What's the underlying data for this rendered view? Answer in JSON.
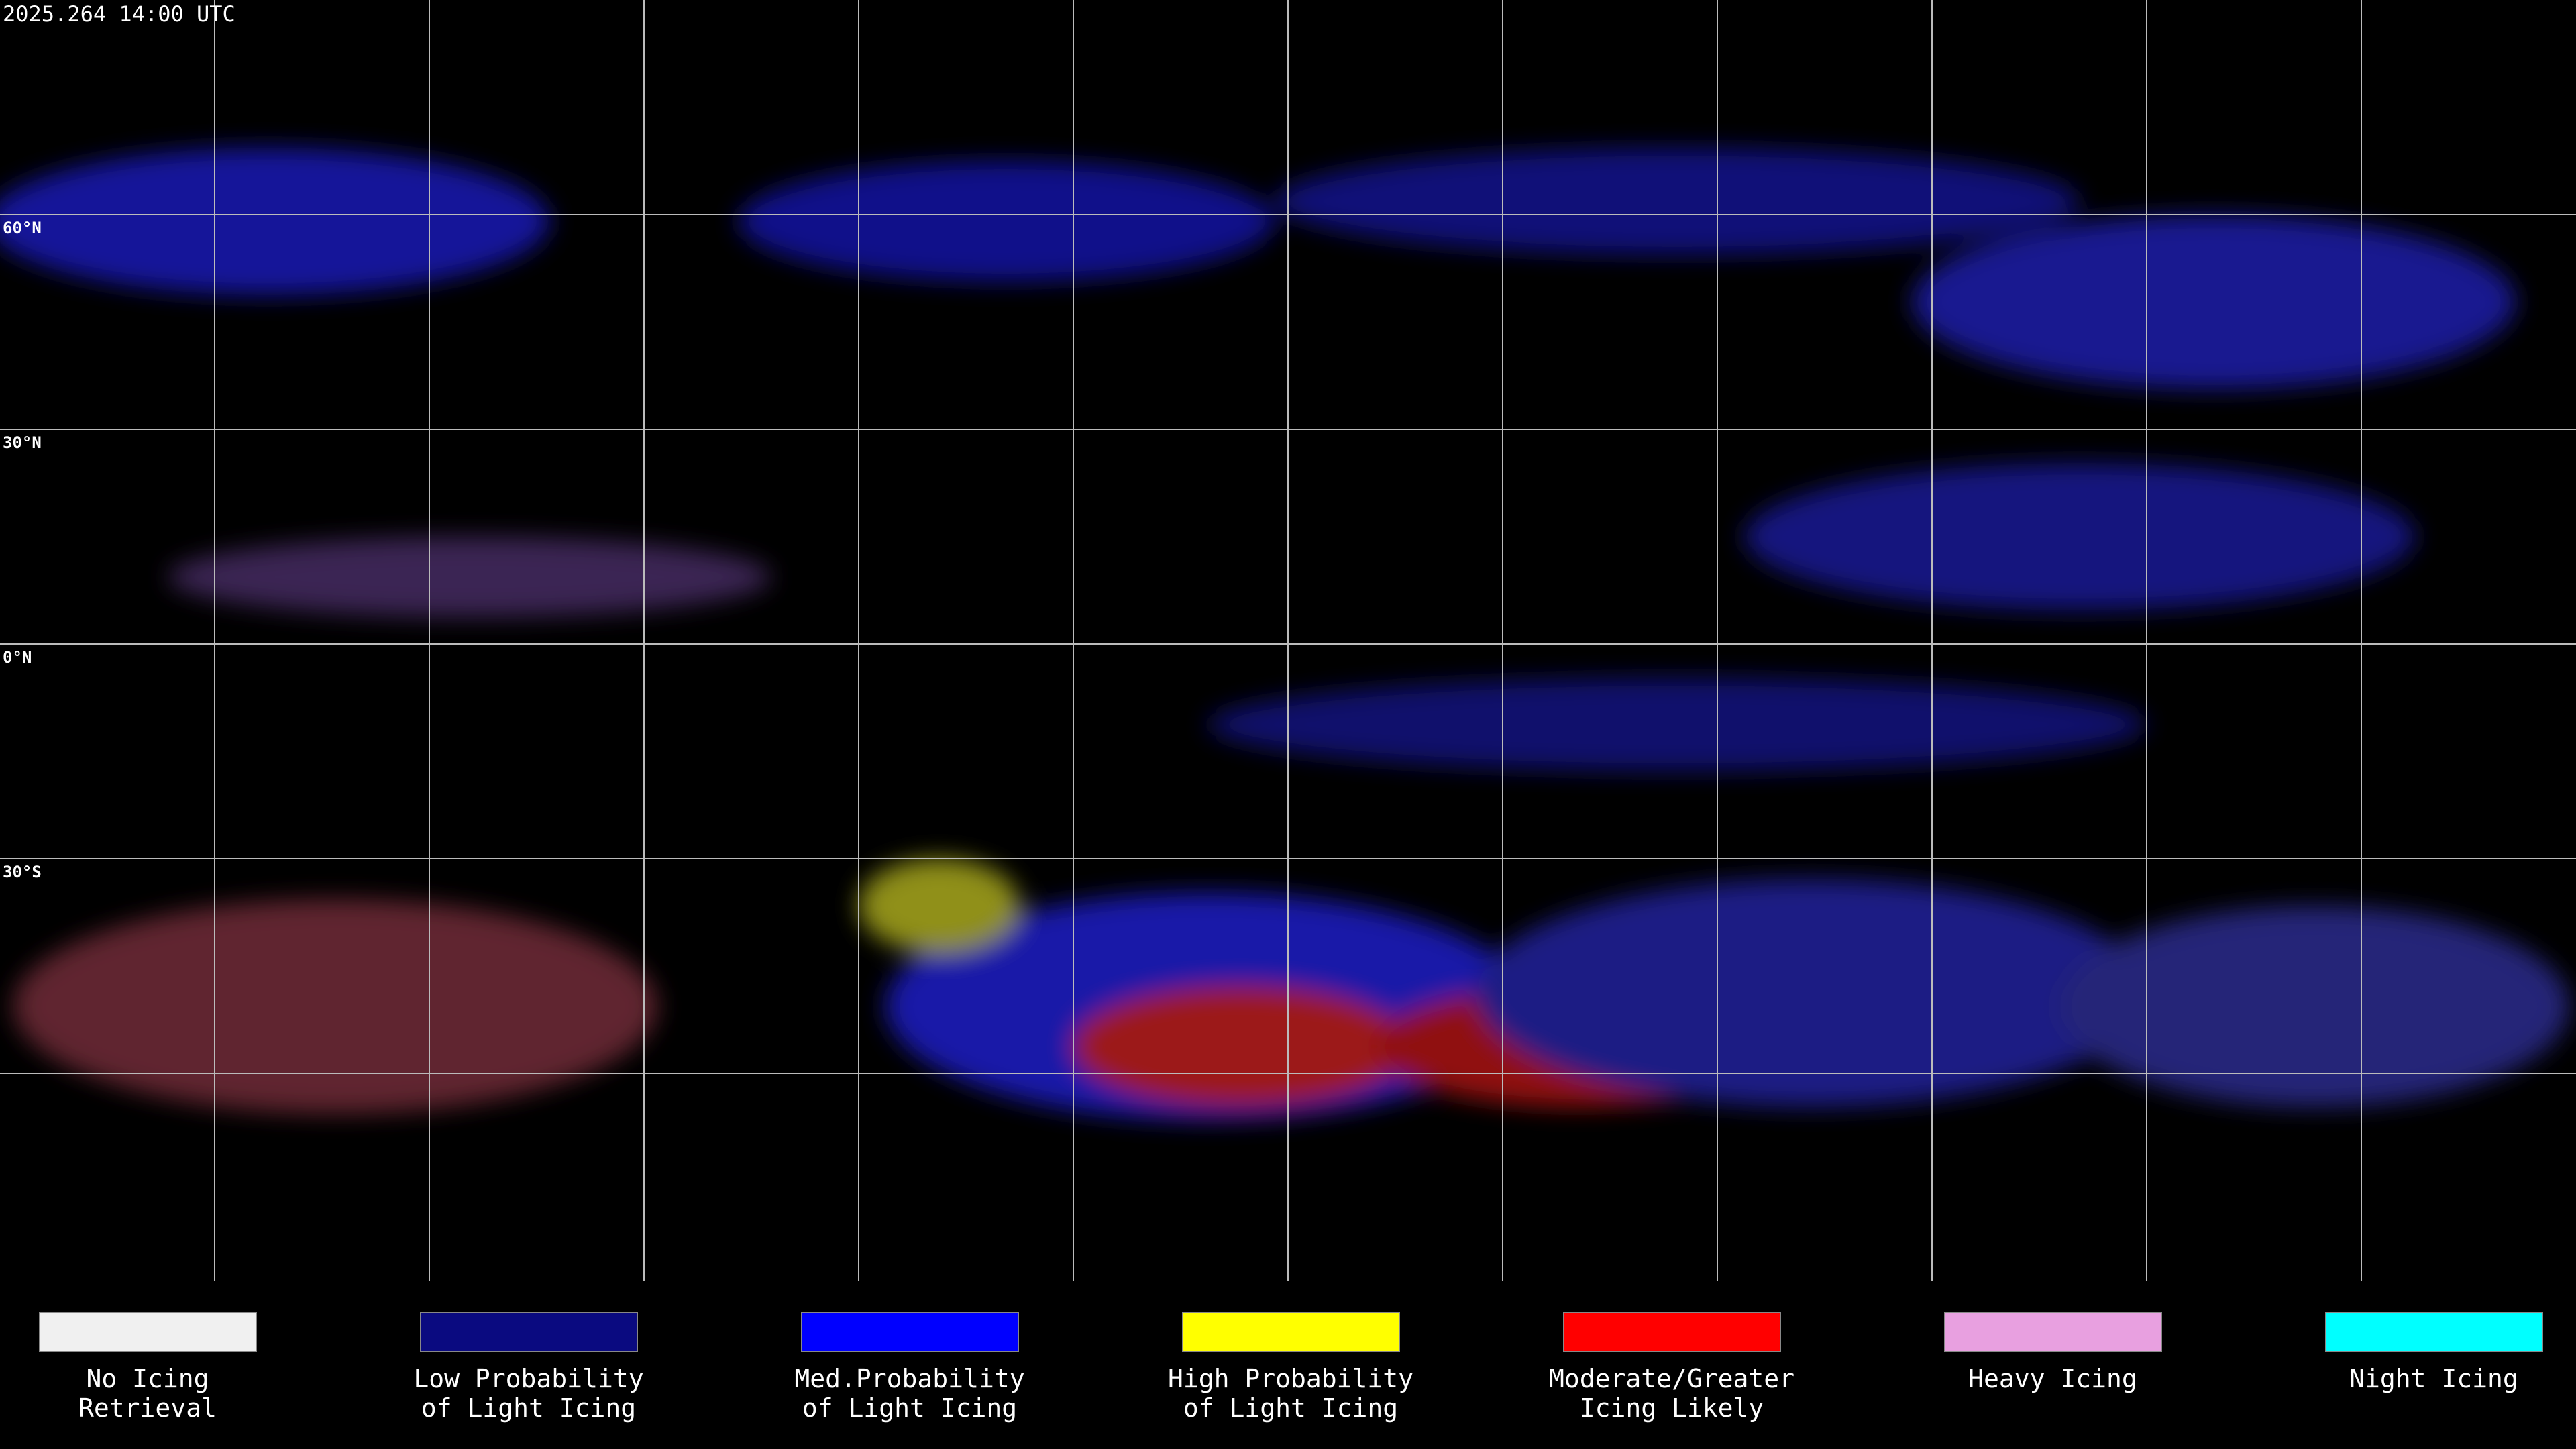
{
  "header": {
    "title": "2025.264 14:00 UTC"
  },
  "map": {
    "lat_labels": [
      "60°N",
      "30°N",
      "0°N",
      "30°S"
    ]
  },
  "legend": {
    "items": [
      {
        "lines": [
          "No Icing",
          "Retrieval"
        ],
        "color": "#f0f0f0"
      },
      {
        "lines": [
          "Low Probability",
          "of Light Icing"
        ],
        "color": "#0a0a80"
      },
      {
        "lines": [
          "Med.Probability",
          "of Light Icing"
        ],
        "color": "#0000ff"
      },
      {
        "lines": [
          "High Probability",
          "of Light Icing"
        ],
        "color": "#ffff00"
      },
      {
        "lines": [
          "Moderate/Greater",
          "Icing Likely"
        ],
        "color": "#ff0000"
      },
      {
        "lines": [
          "Heavy Icing"
        ],
        "color": "#e8a0e0"
      },
      {
        "lines": [
          "Night Icing"
        ],
        "color": "#00ffff"
      }
    ]
  }
}
